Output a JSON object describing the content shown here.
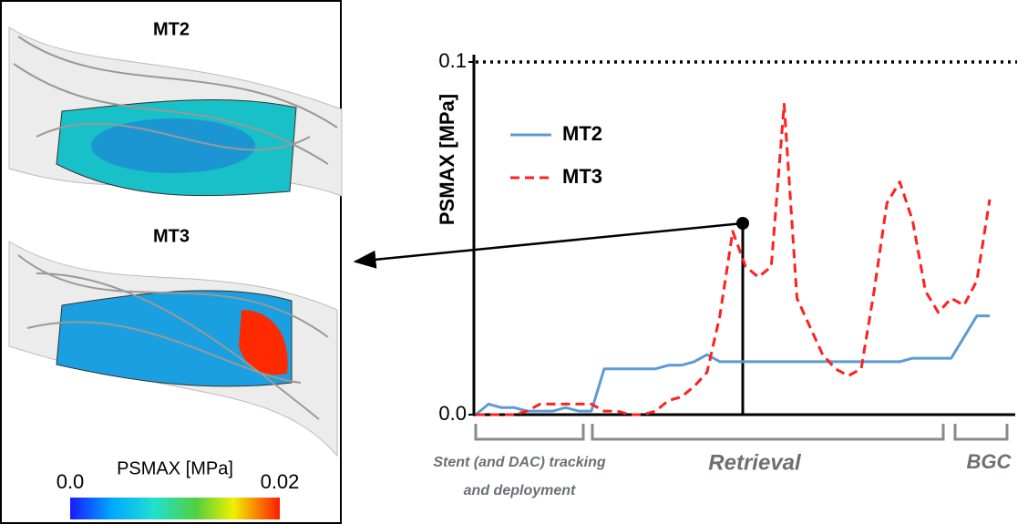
{
  "chart_data": {
    "type": "line",
    "ylabel": "PSMAX [MPa]",
    "categories": [
      null,
      null,
      null,
      null,
      null,
      null,
      null,
      null,
      null,
      null,
      null,
      null,
      null,
      null,
      null,
      null,
      null,
      null,
      null,
      null,
      null,
      null,
      null,
      null,
      null,
      null,
      null,
      null,
      null,
      null,
      null,
      null,
      null,
      null,
      null,
      null,
      null,
      null,
      null,
      null,
      null
    ],
    "series": [
      {
        "name": "MT2",
        "color": "#5b9bd5",
        "dash": "solid",
        "values": [
          0,
          0.003,
          0.002,
          0.002,
          0.001,
          0.001,
          0.001,
          0.002,
          0.001,
          0.001,
          0.013,
          0.013,
          0.013,
          0.013,
          0.013,
          0.014,
          0.014,
          0.015,
          0.017,
          0.015,
          0.015,
          0.015,
          0.015,
          0.015,
          0.015,
          0.015,
          0.015,
          0.015,
          0.015,
          0.015,
          0.015,
          0.015,
          0.015,
          0.015,
          0.016,
          0.016,
          0.016,
          0.016,
          0.022,
          0.028,
          0.028
        ]
      },
      {
        "name": "MT3",
        "color": "#ff2020",
        "dash": "dashed",
        "values": [
          0,
          0,
          0,
          0,
          0.001,
          0.003,
          0.003,
          0.003,
          0.003,
          0.003,
          0.001,
          0.001,
          0,
          0,
          0.001,
          0.004,
          0.005,
          0.008,
          0.012,
          0.028,
          0.052,
          0.042,
          0.039,
          0.042,
          0.088,
          0.033,
          0.025,
          0.017,
          0.013,
          0.011,
          0.013,
          0.035,
          0.06,
          0.066,
          0.055,
          0.035,
          0.029,
          0.033,
          0.031,
          0.038,
          0.061
        ]
      }
    ],
    "ylim": [
      0,
      0.1
    ],
    "yticks": [
      {
        "value": 0,
        "label": "0.0"
      },
      0.1
    ],
    "threshold": 0.1,
    "annotations": {
      "tracking": [
        "Stent (and DAC) tracking",
        "and deployment"
      ],
      "retrieval": "Retrieval",
      "bgc": "BGC"
    }
  },
  "panel": {
    "labels": [
      "MT2",
      "MT3"
    ],
    "colorbar": {
      "title": "PSMAX [MPa]",
      "ticks": [
        {
          "value": 0,
          "label": "0.0"
        },
        0.02
      ],
      "range": [
        0,
        0.02
      ]
    }
  }
}
